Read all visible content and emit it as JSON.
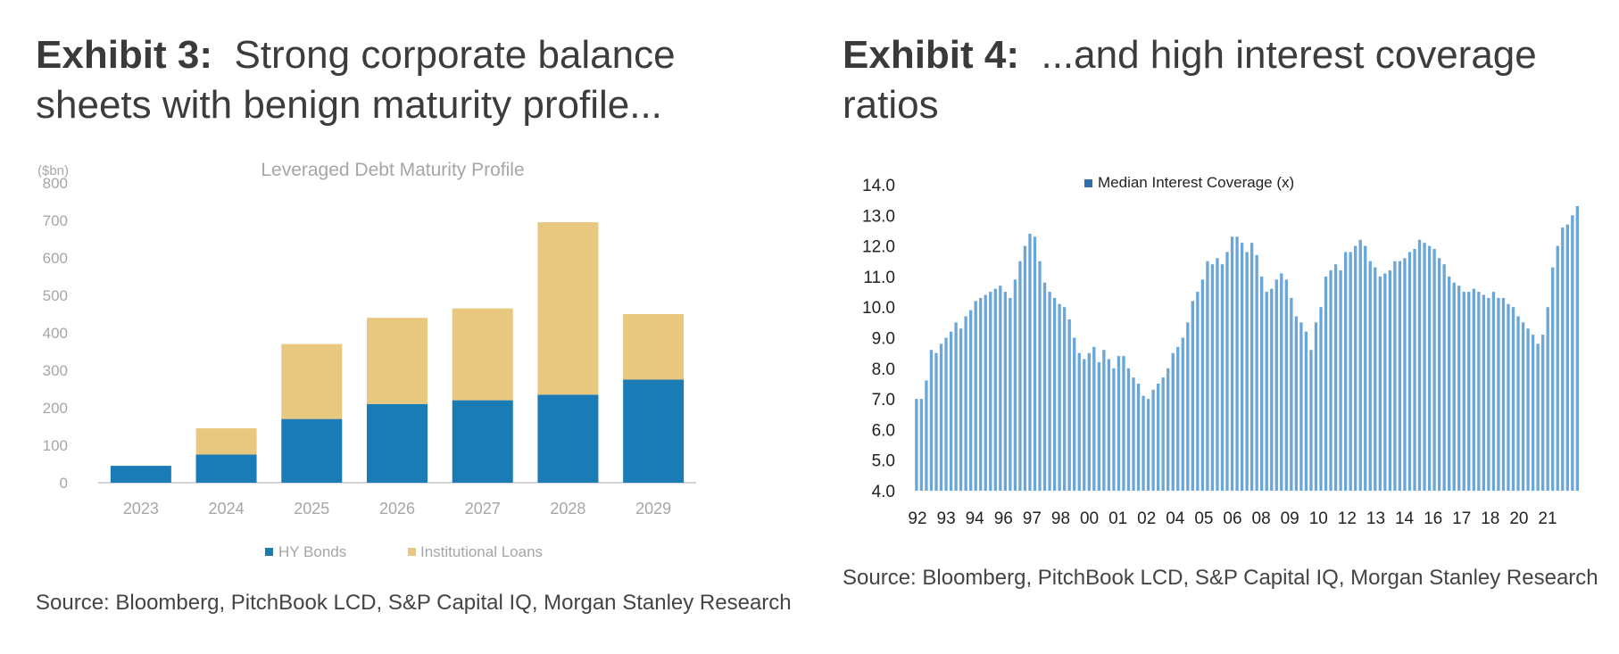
{
  "left": {
    "exhibit_label": "Exhibit 3:",
    "title_text": "Strong corporate balance sheets with benign maturity profile...",
    "source": "Source: Bloomberg, PitchBook LCD, S&P Capital IQ, Morgan Stanley Research"
  },
  "right": {
    "exhibit_label": "Exhibit 4:",
    "title_text": "...and high interest coverage ratios",
    "source": "Source: Bloomberg, PitchBook LCD, S&P Capital IQ, Morgan Stanley Research"
  },
  "colors": {
    "hy": "#1b7bb5",
    "loans": "#e8c77e",
    "coverage": "#6aa6d8",
    "axis": "#c8c8c8"
  },
  "chart_data": [
    {
      "type": "bar",
      "stacked": true,
      "title": "Leveraged Debt Maturity  Profile",
      "unit_label": "($bn)",
      "categories": [
        "2023",
        "2024",
        "2025",
        "2026",
        "2027",
        "2028",
        "2029"
      ],
      "series": [
        {
          "name": "HY Bonds",
          "values": [
            45,
            75,
            170,
            210,
            220,
            235,
            275
          ]
        },
        {
          "name": "Institutional Loans",
          "values": [
            0,
            70,
            200,
            230,
            245,
            460,
            175
          ]
        }
      ],
      "ylim": [
        0,
        800
      ],
      "yticks": [
        "0",
        "100",
        "200",
        "300",
        "400",
        "500",
        "600",
        "700",
        "800"
      ],
      "legend": "bottom"
    },
    {
      "type": "bar",
      "title": "Median Interest Coverage (x)",
      "legend_label": "Median Interest Coverage (x)",
      "ylim": [
        4.0,
        14.0
      ],
      "yticks": [
        "4.0",
        "5.0",
        "6.0",
        "7.0",
        "8.0",
        "9.0",
        "10.0",
        "11.0",
        "12.0",
        "13.0",
        "14.0"
      ],
      "xtick_labels": [
        "92",
        "93",
        "94",
        "96",
        "97",
        "98",
        "00",
        "01",
        "02",
        "04",
        "05",
        "06",
        "08",
        "09",
        "10",
        "12",
        "13",
        "14",
        "16",
        "17",
        "18",
        "20",
        "21"
      ],
      "values": [
        7.0,
        7.0,
        7.6,
        8.6,
        8.5,
        8.8,
        9.0,
        9.2,
        9.5,
        9.3,
        9.7,
        9.9,
        10.2,
        10.3,
        10.4,
        10.5,
        10.6,
        10.7,
        10.5,
        10.3,
        10.9,
        11.5,
        12.0,
        12.4,
        12.3,
        11.5,
        10.8,
        10.5,
        10.3,
        10.1,
        10.0,
        9.6,
        9.0,
        8.5,
        8.3,
        8.5,
        8.7,
        8.2,
        8.6,
        8.3,
        8.0,
        8.4,
        8.4,
        8.0,
        7.7,
        7.5,
        7.1,
        7.0,
        7.3,
        7.5,
        7.7,
        8.0,
        8.5,
        8.7,
        9.0,
        9.5,
        10.2,
        10.5,
        10.9,
        11.5,
        11.4,
        11.6,
        11.4,
        11.8,
        12.3,
        12.3,
        12.1,
        11.8,
        12.1,
        11.7,
        11.0,
        10.5,
        10.6,
        10.9,
        11.1,
        10.9,
        10.3,
        9.7,
        9.5,
        9.2,
        8.6,
        9.5,
        10.0,
        11.0,
        11.2,
        11.4,
        11.2,
        11.8,
        11.8,
        12.0,
        12.2,
        12.0,
        11.5,
        11.3,
        11.0,
        11.1,
        11.2,
        11.5,
        11.5,
        11.6,
        11.8,
        11.9,
        12.2,
        12.1,
        12.0,
        11.9,
        11.6,
        11.4,
        11.0,
        10.8,
        10.7,
        10.5,
        10.5,
        10.6,
        10.5,
        10.4,
        10.3,
        10.5,
        10.3,
        10.3,
        10.1,
        10.0,
        9.7,
        9.5,
        9.3,
        9.1,
        8.8,
        9.1,
        10.0,
        11.3,
        12.0,
        12.6,
        12.7,
        13.0,
        13.3
      ]
    }
  ],
  "chart_labels": {
    "left_legend": [
      "HY Bonds",
      "Institutional Loans"
    ],
    "right_legend": "Median Interest Coverage (x)"
  }
}
